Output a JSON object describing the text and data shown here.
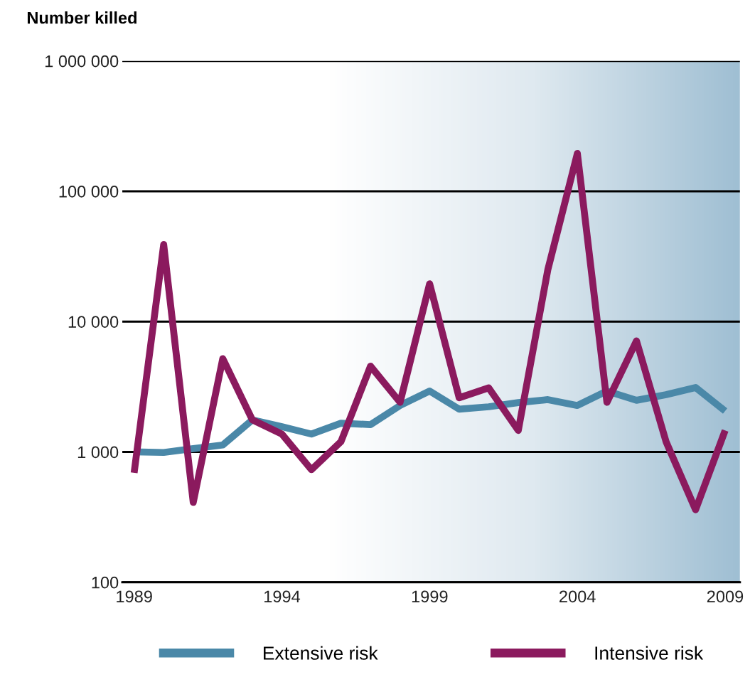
{
  "chart_data": {
    "type": "line",
    "ylabel": "Number killed",
    "x": [
      1989,
      1990,
      1991,
      1992,
      1993,
      1994,
      1995,
      1996,
      1997,
      1998,
      1999,
      2000,
      2001,
      2002,
      2003,
      2004,
      2005,
      2006,
      2007,
      2008,
      2009
    ],
    "series": [
      {
        "name": "Extensive risk",
        "color": "#4a88a8",
        "values": [
          1000,
          990,
          1060,
          1130,
          1760,
          1560,
          1370,
          1660,
          1620,
          2270,
          2930,
          2130,
          2220,
          2390,
          2520,
          2270,
          2930,
          2490,
          2750,
          3120,
          2060
        ]
      },
      {
        "name": "Intensive risk",
        "color": "#8b1a5e",
        "values": [
          690,
          39000,
          410,
          5200,
          1760,
          1370,
          730,
          1200,
          4550,
          2400,
          19500,
          2600,
          3100,
          1460,
          25000,
          195000,
          2400,
          7100,
          1200,
          360,
          1460
        ]
      }
    ],
    "log": "y",
    "ylim": [
      100,
      1000000
    ],
    "yticks": [
      {
        "value": 100,
        "label": "100"
      },
      {
        "value": 1000,
        "label": "1 000"
      },
      {
        "value": 10000,
        "label": "10 000"
      },
      {
        "value": 100000,
        "label": "100 000"
      },
      {
        "value": 1000000,
        "label": "1 000 000"
      }
    ],
    "xlim": [
      1988.6,
      2009.5
    ],
    "xticks": [
      1989,
      1994,
      1999,
      2004,
      2009
    ],
    "grid": "y",
    "legend": "bottom",
    "line_style": "solid",
    "marker": "none"
  }
}
